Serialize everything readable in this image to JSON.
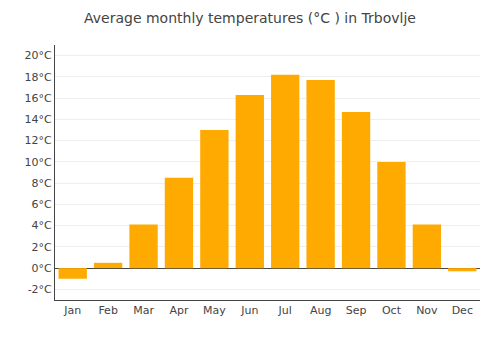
{
  "chart_data": {
    "type": "bar",
    "title": "Average monthly temperatures (°C ) in Trbovlje",
    "categories": [
      "Jan",
      "Feb",
      "Mar",
      "Apr",
      "May",
      "Jun",
      "Jul",
      "Aug",
      "Sep",
      "Oct",
      "Nov",
      "Dec"
    ],
    "values": [
      -1.0,
      0.5,
      4.1,
      8.5,
      13.0,
      16.3,
      18.2,
      17.7,
      14.7,
      10.0,
      4.1,
      -0.3
    ],
    "color": "#FFAA00",
    "ylim": [
      -3,
      21
    ],
    "yticks": [
      {
        "value": -2,
        "label": "-2°C"
      },
      {
        "value": 0,
        "label": "0°C"
      },
      {
        "value": 2,
        "label": "2°C"
      },
      {
        "value": 4,
        "label": "4°C"
      },
      {
        "value": 6,
        "label": "6°C"
      },
      {
        "value": 8,
        "label": "8°C"
      },
      {
        "value": 10,
        "label": "10°C"
      },
      {
        "value": 12,
        "label": "12°C"
      },
      {
        "value": 14,
        "label": "14°C"
      },
      {
        "value": 16,
        "label": "16°C"
      },
      {
        "value": 18,
        "label": "18°C"
      },
      {
        "value": 20,
        "label": "20°C"
      }
    ],
    "grid": true
  }
}
